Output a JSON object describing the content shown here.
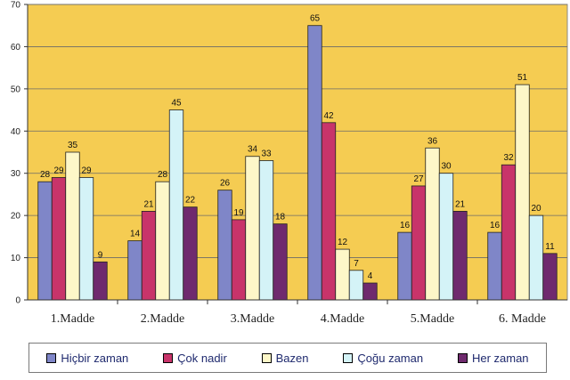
{
  "chart_data": {
    "type": "bar",
    "categories": [
      "1.Madde",
      "2.Madde",
      "3.Madde",
      "4.Madde",
      "5.Madde",
      "6. Madde"
    ],
    "series": [
      {
        "name": "Hiçbir zaman",
        "color": "#7f86c8",
        "values": [
          28,
          14,
          26,
          65,
          16,
          16
        ]
      },
      {
        "name": "Çok nadir",
        "color": "#c8346a",
        "values": [
          29,
          21,
          19,
          42,
          27,
          32
        ]
      },
      {
        "name": "Bazen",
        "color": "#fdf7c8",
        "values": [
          35,
          28,
          34,
          12,
          36,
          51
        ]
      },
      {
        "name": "Çoğu zaman",
        "color": "#d4f3f7",
        "values": [
          29,
          45,
          33,
          7,
          30,
          20
        ]
      },
      {
        "name": "Her zaman",
        "color": "#6f2a6e",
        "values": [
          9,
          22,
          18,
          4,
          21,
          11
        ]
      }
    ],
    "ylim": [
      0,
      70
    ],
    "yticks": [
      0,
      10,
      20,
      30,
      40,
      50,
      60,
      70
    ],
    "grid": true,
    "legend": "bottom",
    "plot_background": "#f5cc52"
  }
}
